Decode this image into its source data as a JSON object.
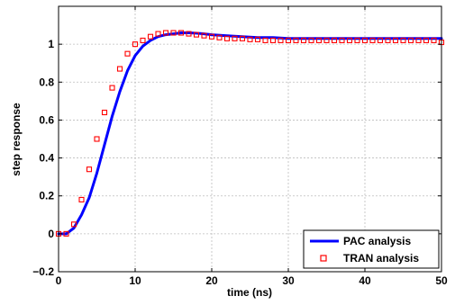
{
  "chart_data": {
    "type": "line",
    "xlabel": "time (ns)",
    "ylabel": "step response",
    "xlim": [
      0,
      50
    ],
    "ylim": [
      -0.2,
      1.2
    ],
    "x_ticks": [
      "0",
      "10",
      "20",
      "30",
      "40",
      "50"
    ],
    "y_ticks": [
      "−0.2",
      "0",
      "0.2",
      "0.4",
      "0.6",
      "0.8",
      "1"
    ],
    "grid": true,
    "legend_position": "bottom-right",
    "colors": {
      "pac": "#0000ff",
      "tran": "#ff0000"
    },
    "series": [
      {
        "name": "PAC analysis",
        "style": "solid-line",
        "x": [
          0,
          1,
          2,
          3,
          4,
          5,
          6,
          7,
          8,
          9,
          10,
          11,
          12,
          13,
          14,
          15,
          16,
          17,
          18,
          19,
          20,
          22,
          24,
          26,
          28,
          30,
          35,
          40,
          45,
          49,
          50
        ],
        "y": [
          0,
          0,
          0.03,
          0.1,
          0.19,
          0.32,
          0.47,
          0.62,
          0.75,
          0.86,
          0.94,
          0.99,
          1.02,
          1.04,
          1.05,
          1.055,
          1.06,
          1.06,
          1.058,
          1.055,
          1.05,
          1.045,
          1.04,
          1.035,
          1.035,
          1.03,
          1.03,
          1.03,
          1.03,
          1.03,
          1.03
        ]
      },
      {
        "name": "TRAN analysis",
        "style": "square-markers",
        "x": [
          0,
          1,
          2,
          3,
          4,
          5,
          6,
          7,
          8,
          9,
          10,
          11,
          12,
          13,
          14,
          15,
          16,
          17,
          18,
          19,
          20,
          21,
          22,
          23,
          24,
          25,
          26,
          27,
          28,
          29,
          30,
          31,
          32,
          33,
          34,
          35,
          36,
          37,
          38,
          39,
          40,
          41,
          42,
          43,
          44,
          45,
          46,
          47,
          48,
          49,
          50
        ],
        "y": [
          0,
          0,
          0.05,
          0.18,
          0.34,
          0.5,
          0.64,
          0.77,
          0.87,
          0.95,
          1.0,
          1.02,
          1.04,
          1.055,
          1.06,
          1.06,
          1.06,
          1.055,
          1.05,
          1.045,
          1.04,
          1.035,
          1.03,
          1.03,
          1.03,
          1.025,
          1.025,
          1.02,
          1.02,
          1.02,
          1.02,
          1.02,
          1.02,
          1.02,
          1.02,
          1.02,
          1.02,
          1.02,
          1.02,
          1.02,
          1.02,
          1.02,
          1.02,
          1.02,
          1.02,
          1.02,
          1.02,
          1.02,
          1.02,
          1.02,
          1.01
        ]
      }
    ]
  }
}
